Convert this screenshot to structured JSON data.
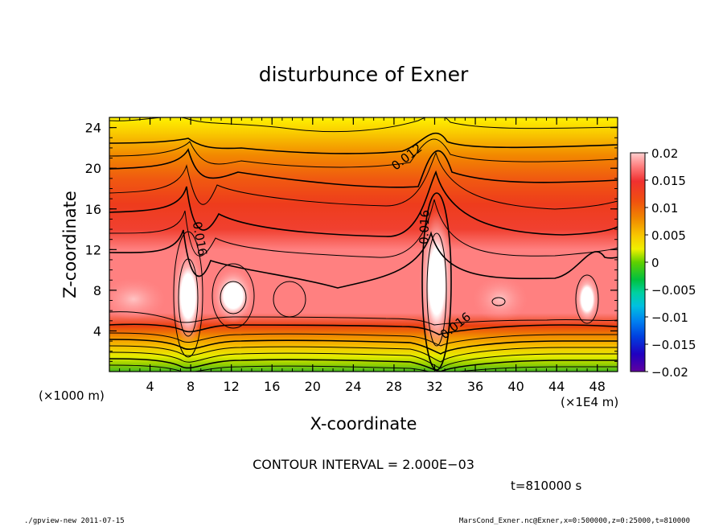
{
  "chart_data": {
    "type": "heatmap",
    "title": "disturbunce of Exner",
    "xlabel": "X-coordinate",
    "ylabel": "Z-coordinate",
    "x_unit_left": "(×1000 m)",
    "x_unit_right": "(×1E4 m)",
    "xlim": [
      0,
      50
    ],
    "ylim": [
      0,
      25
    ],
    "x_ticks": [
      4,
      8,
      12,
      16,
      20,
      24,
      28,
      32,
      36,
      40,
      44,
      48
    ],
    "y_ticks": [
      4,
      8,
      12,
      16,
      20,
      24
    ],
    "colorbar": {
      "range": [
        -0.02,
        0.02
      ],
      "tick_labels": [
        "0.02",
        "0.015",
        "0.01",
        "0.005",
        "0",
        "−0.005",
        "−0.01",
        "−0.015",
        "−0.02"
      ],
      "tick_values": [
        0.02,
        0.015,
        0.01,
        0.005,
        0,
        -0.005,
        -0.01,
        -0.015,
        -0.02
      ]
    },
    "contour_labels": [
      {
        "text": "0.016",
        "x": 8.5,
        "z": 13
      },
      {
        "text": "0.012",
        "x": 29.5,
        "z": 20.8
      },
      {
        "text": "0.016",
        "x": 31.4,
        "z": 14.2
      },
      {
        "text": "0.016",
        "x": 34.3,
        "z": 4.2
      }
    ],
    "contour_interval_text": "CONTOUR INTERVAL = 2.000E−03",
    "time_text": "t=810000 s"
  },
  "footer": {
    "left": "./gpview-new  2011-07-15",
    "right": "MarsCond_Exner.nc@Exner,x=0:500000,z=0:25000,t=810000"
  }
}
